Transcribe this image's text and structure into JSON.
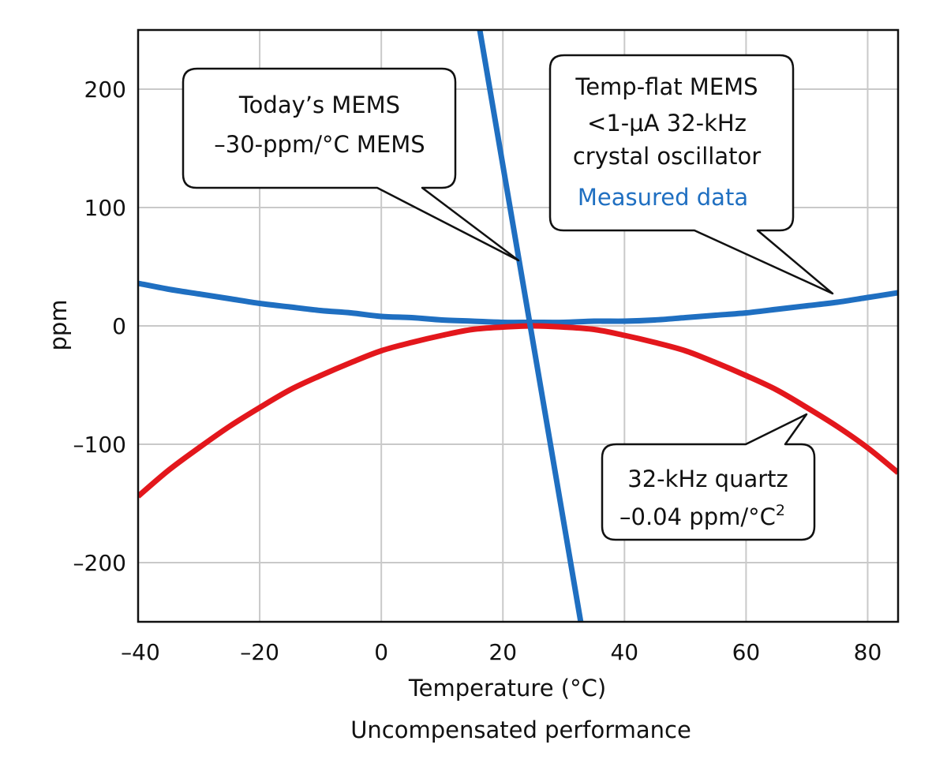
{
  "chart_data": {
    "type": "line",
    "title": "",
    "xlabel": "Temperature (°C)",
    "ylabel": "ppm",
    "caption": "Uncompensated performance",
    "xlim": [
      -40,
      85
    ],
    "ylim": [
      -250,
      250
    ],
    "xticks": [
      -40,
      -20,
      0,
      20,
      40,
      60,
      80
    ],
    "xtick_labels": [
      "–40",
      "–20",
      "0",
      "20",
      "40",
      "60",
      "80"
    ],
    "yticks": [
      200,
      100,
      0,
      -100,
      -200
    ],
    "ytick_labels": [
      "200",
      "100",
      "0",
      "–100",
      "–200"
    ],
    "grid": true,
    "legend": "none",
    "colors": {
      "blue": "#1f6fc1",
      "red": "#e3171c",
      "grid": "#c9c9c9"
    },
    "series": [
      {
        "color": "#1f6fc1",
        "x": [
          -40,
          -35,
          -30,
          -25,
          -20,
          -15,
          -10,
          -5,
          0,
          5,
          10,
          15,
          20,
          25,
          30,
          35,
          40,
          45,
          50,
          55,
          60,
          65,
          70,
          75,
          80,
          85
        ],
        "y": [
          36,
          31,
          27,
          23,
          19,
          16,
          13,
          11,
          8,
          7,
          5,
          4,
          3,
          3,
          3,
          4,
          4,
          5,
          7,
          9,
          11,
          14,
          17,
          20,
          24,
          28
        ]
      },
      {
        "color": "#e3171c",
        "x": [
          -40,
          -35,
          -30,
          -25,
          -20,
          -15,
          -10,
          -5,
          0,
          5,
          10,
          15,
          20,
          25,
          30,
          35,
          40,
          45,
          50,
          55,
          60,
          65,
          70,
          75,
          80,
          85
        ],
        "y": [
          -144,
          -122,
          -103,
          -85,
          -69,
          -54,
          -42,
          -31,
          -21,
          -14,
          -8,
          -3,
          -1,
          0,
          -1,
          -3,
          -8,
          -14,
          -21,
          -31,
          -42,
          -54,
          -69,
          -85,
          -103,
          -124
        ]
      },
      {
        "color": "#1f6fc1",
        "x": [
          16.2,
          32.8
        ],
        "y": [
          250,
          -250
        ]
      }
    ],
    "annotations": {
      "todays_mems": [
        "Today’s MEMS",
        "–30-ppm/°C MEMS"
      ],
      "temp_flat": [
        "Temp-flat MEMS",
        "<1-μA 32-kHz",
        "crystal oscillator"
      ],
      "temp_flat_measured": "Measured data",
      "quartz": [
        "32-kHz quartz",
        "–0.04 ppm/°C"
      ],
      "quartz_superscript": "2"
    }
  }
}
